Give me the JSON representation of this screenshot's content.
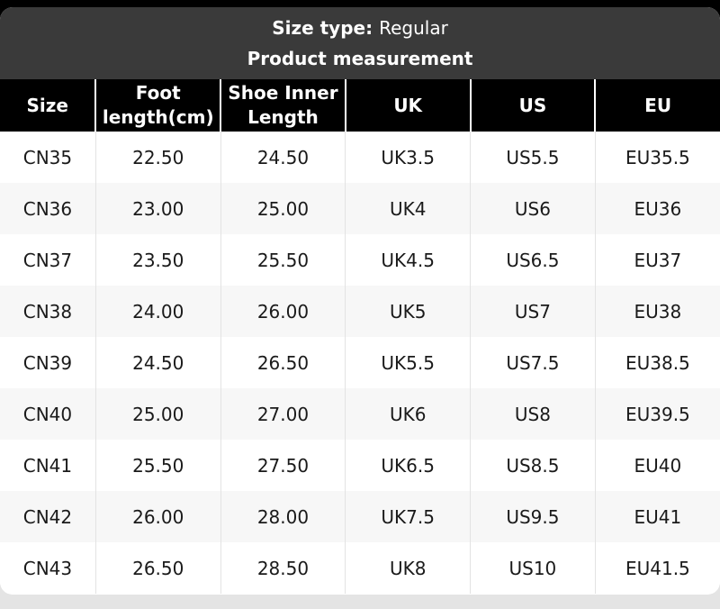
{
  "header": {
    "size_type_label": "Size type:",
    "size_type_value": "Regular",
    "subtitle": "Product measurement"
  },
  "table": {
    "columns": [
      "Size",
      "Foot length(cm)",
      "Shoe Inner Length",
      "UK",
      "US",
      "EU"
    ],
    "rows": [
      [
        "CN35",
        "22.50",
        "24.50",
        "UK3.5",
        "US5.5",
        "EU35.5"
      ],
      [
        "CN36",
        "23.00",
        "25.00",
        "UK4",
        "US6",
        "EU36"
      ],
      [
        "CN37",
        "23.50",
        "25.50",
        "UK4.5",
        "US6.5",
        "EU37"
      ],
      [
        "CN38",
        "24.00",
        "26.00",
        "UK5",
        "US7",
        "EU38"
      ],
      [
        "CN39",
        "24.50",
        "26.50",
        "UK5.5",
        "US7.5",
        "EU38.5"
      ],
      [
        "CN40",
        "25.00",
        "27.00",
        "UK6",
        "US8",
        "EU39.5"
      ],
      [
        "CN41",
        "25.50",
        "27.50",
        "UK6.5",
        "US8.5",
        "EU40"
      ],
      [
        "CN42",
        "26.00",
        "28.00",
        "UK7.5",
        "US9.5",
        "EU41"
      ],
      [
        "CN43",
        "26.50",
        "28.50",
        "UK8",
        "US10",
        "EU41.5"
      ]
    ]
  },
  "colors": {
    "panel_bg": "#3a3a3a",
    "column_header_bg": "#000000",
    "column_header_divider": "#ffffff",
    "row_bg": "#ffffff",
    "alt_row_bg": "#f7f7f7",
    "body_divider": "#e3e3e3",
    "body_text": "#1a1a1a",
    "header_text": "#ffffff",
    "outer_top_bg": "#000000",
    "outer_bottom_bg": "#e4e4e4"
  }
}
